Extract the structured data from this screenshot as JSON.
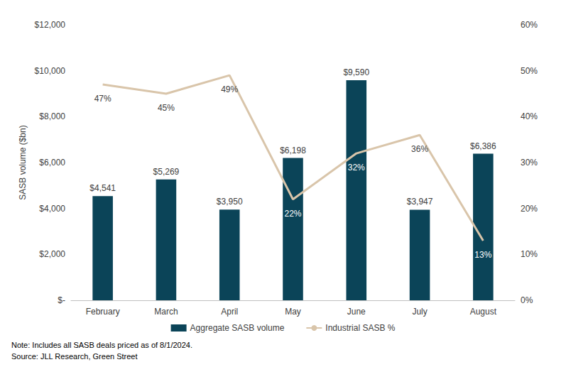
{
  "chart_data": {
    "type": "bar",
    "ylabel": "SASB volume ($bn)",
    "categories": [
      "February",
      "March",
      "April",
      "May",
      "June",
      "July",
      "August"
    ],
    "series": [
      {
        "name": "Aggregate SASB volume",
        "type": "bar",
        "color": "#0b4458",
        "values": [
          4541,
          5269,
          3950,
          6198,
          9590,
          3947,
          6386
        ],
        "value_labels": [
          "$4,541",
          "$5,269",
          "$3,950",
          "$6,198",
          "$9,590",
          "$3,947",
          "$6,386"
        ]
      },
      {
        "name": "Industrial SASB %",
        "type": "line",
        "axis": "y2",
        "color": "#d9c5aa",
        "marker": "none",
        "values": [
          47,
          45,
          49,
          22,
          32,
          36,
          13
        ],
        "value_labels": [
          "47%",
          "45%",
          "49%",
          "22%",
          "32%",
          "36%",
          "13%"
        ]
      }
    ],
    "ylim": [
      0,
      12000
    ],
    "yticks": [
      {
        "value": 0,
        "label": "$-"
      },
      {
        "value": 2000,
        "label": "$2,000"
      },
      {
        "value": 4000,
        "label": "$4,000"
      },
      {
        "value": 6000,
        "label": "$6,000"
      },
      {
        "value": 8000,
        "label": "$8,000"
      },
      {
        "value": 10000,
        "label": "$10,000"
      },
      {
        "value": 12000,
        "label": "$12,000"
      }
    ],
    "y2lim": [
      0,
      60
    ],
    "y2ticks": [
      {
        "value": 0,
        "label": "0%"
      },
      {
        "value": 10,
        "label": "10%"
      },
      {
        "value": 20,
        "label": "20%"
      },
      {
        "value": 30,
        "label": "30%"
      },
      {
        "value": 40,
        "label": "40%"
      },
      {
        "value": 50,
        "label": "50%"
      },
      {
        "value": 60,
        "label": "60%"
      }
    ],
    "grid": false,
    "legend": "bottom",
    "data_labels": true,
    "annotations": [
      "Note: Includes all SASB deals priced as of 8/1/2024.",
      "Source: JLL Research, Green Street"
    ]
  }
}
